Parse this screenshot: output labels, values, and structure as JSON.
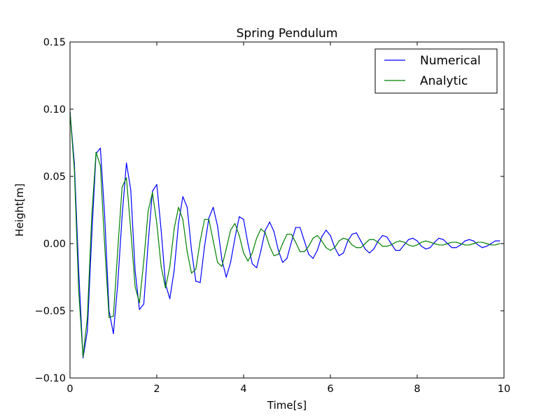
{
  "chart_data": {
    "type": "line",
    "title": "Spring Pendulum",
    "xlabel": "Time[s]",
    "ylabel": "Height[m]",
    "xlim": [
      0,
      10
    ],
    "ylim": [
      -0.1,
      0.15
    ],
    "xticks": [
      0,
      2,
      4,
      6,
      8,
      10
    ],
    "xtick_labels": [
      "0",
      "2",
      "4",
      "6",
      "8",
      "10"
    ],
    "yticks": [
      -0.1,
      -0.05,
      0.0,
      0.05,
      0.1,
      0.15
    ],
    "ytick_labels": [
      "−0.10",
      "−0.05",
      "0.00",
      "0.05",
      "0.10",
      "0.15"
    ],
    "grid": false,
    "legend_position": "top-right",
    "series": [
      {
        "name": "Numerical",
        "color": "#0000ff",
        "x": [
          0.0,
          0.1,
          0.2,
          0.3,
          0.4,
          0.5,
          0.6,
          0.7,
          0.8,
          0.9,
          1.0,
          1.1,
          1.2,
          1.3,
          1.4,
          1.5,
          1.6,
          1.7,
          1.8,
          1.9,
          2.0,
          2.1,
          2.2,
          2.3,
          2.4,
          2.5,
          2.6,
          2.7,
          2.8,
          2.9,
          3.0,
          3.1,
          3.2,
          3.3,
          3.4,
          3.5,
          3.6,
          3.7,
          3.8,
          3.9,
          4.0,
          4.1,
          4.2,
          4.3,
          4.4,
          4.5,
          4.6,
          4.7,
          4.8,
          4.9,
          5.0,
          5.1,
          5.2,
          5.3,
          5.4,
          5.5,
          5.6,
          5.7,
          5.8,
          5.9,
          6.0,
          6.1,
          6.2,
          6.3,
          6.4,
          6.5,
          6.6,
          6.7,
          6.8,
          6.9,
          7.0,
          7.1,
          7.2,
          7.3,
          7.4,
          7.5,
          7.6,
          7.7,
          7.8,
          7.9,
          8.0,
          8.1,
          8.2,
          8.3,
          8.4,
          8.5,
          8.6,
          8.7,
          8.8,
          8.9,
          9.0,
          9.1,
          9.2,
          9.3,
          9.4,
          9.5,
          9.6,
          9.7,
          9.8,
          9.9
        ],
        "y": [
          0.098,
          0.06,
          -0.02,
          -0.085,
          -0.065,
          0.005,
          0.067,
          0.071,
          0.02,
          -0.05,
          -0.067,
          -0.03,
          0.02,
          0.06,
          0.04,
          -0.02,
          -0.049,
          -0.045,
          0.0,
          0.039,
          0.044,
          0.01,
          -0.03,
          -0.041,
          -0.02,
          0.015,
          0.035,
          0.027,
          -0.005,
          -0.028,
          -0.029,
          -0.002,
          0.019,
          0.027,
          0.013,
          -0.012,
          -0.025,
          -0.014,
          0.004,
          0.02,
          0.018,
          0.0,
          -0.015,
          -0.018,
          -0.005,
          0.01,
          0.016,
          0.009,
          -0.005,
          -0.014,
          -0.011,
          0.001,
          0.012,
          0.012,
          0.002,
          -0.008,
          -0.011,
          -0.005,
          0.005,
          0.01,
          0.006,
          -0.003,
          -0.009,
          -0.007,
          0.002,
          0.007,
          0.008,
          0.002,
          -0.004,
          -0.007,
          -0.004,
          0.002,
          0.006,
          0.005,
          0.0,
          -0.005,
          -0.005,
          -0.001,
          0.003,
          0.004,
          0.002,
          -0.002,
          -0.004,
          -0.003,
          0.001,
          0.004,
          0.003,
          0.0,
          -0.003,
          -0.003,
          -0.001,
          0.002,
          0.003,
          0.002,
          -0.001,
          -0.003,
          -0.002,
          0.0,
          0.002,
          0.002
        ]
      },
      {
        "name": "Analytic",
        "color": "#008000",
        "x": [
          0.0,
          0.1,
          0.2,
          0.3,
          0.4,
          0.5,
          0.6,
          0.7,
          0.8,
          0.9,
          1.0,
          1.1,
          1.2,
          1.3,
          1.4,
          1.5,
          1.6,
          1.7,
          1.8,
          1.9,
          2.0,
          2.1,
          2.2,
          2.3,
          2.4,
          2.5,
          2.6,
          2.7,
          2.8,
          2.9,
          3.0,
          3.1,
          3.2,
          3.3,
          3.4,
          3.5,
          3.6,
          3.7,
          3.8,
          3.9,
          4.0,
          4.1,
          4.2,
          4.3,
          4.4,
          4.5,
          4.6,
          4.7,
          4.8,
          4.9,
          5.0,
          5.1,
          5.2,
          5.3,
          5.4,
          5.5,
          5.6,
          5.7,
          5.8,
          5.9,
          6.0,
          6.1,
          6.2,
          6.3,
          6.4,
          6.5,
          6.6,
          6.7,
          6.8,
          6.9,
          7.0,
          7.1,
          7.2,
          7.3,
          7.4,
          7.5,
          7.6,
          7.7,
          7.8,
          7.9,
          8.0,
          8.1,
          8.2,
          8.3,
          8.4,
          8.5,
          8.6,
          8.7,
          8.8,
          8.9,
          9.0,
          9.1,
          9.2,
          9.3,
          9.4,
          9.5,
          9.6,
          9.7,
          9.8,
          9.9
        ],
        "y": [
          0.098,
          0.055,
          -0.035,
          -0.084,
          -0.055,
          0.02,
          0.068,
          0.058,
          -0.002,
          -0.055,
          -0.054,
          -0.005,
          0.042,
          0.049,
          0.01,
          -0.032,
          -0.044,
          -0.013,
          0.024,
          0.038,
          0.015,
          -0.017,
          -0.033,
          -0.017,
          0.011,
          0.027,
          0.018,
          -0.006,
          -0.022,
          -0.019,
          0.002,
          0.018,
          0.018,
          0.002,
          -0.014,
          -0.017,
          -0.004,
          0.01,
          0.015,
          0.006,
          -0.007,
          -0.013,
          -0.007,
          0.004,
          0.011,
          0.008,
          -0.002,
          -0.009,
          -0.008,
          0.0,
          0.007,
          0.007,
          0.001,
          -0.006,
          -0.006,
          -0.002,
          0.004,
          0.006,
          0.002,
          -0.003,
          -0.005,
          -0.003,
          0.002,
          0.004,
          0.003,
          -0.001,
          -0.003,
          -0.003,
          0.0,
          0.003,
          0.003,
          0.001,
          -0.002,
          -0.002,
          -0.001,
          0.001,
          0.002,
          0.001,
          -0.001,
          -0.002,
          -0.001,
          0.001,
          0.002,
          0.001,
          0.0,
          -0.001,
          -0.001,
          0.0,
          0.001,
          0.001,
          0.0,
          -0.001,
          -0.001,
          0.0,
          0.001,
          0.001,
          0.0,
          -0.001,
          -0.001,
          0.0
        ]
      }
    ]
  }
}
